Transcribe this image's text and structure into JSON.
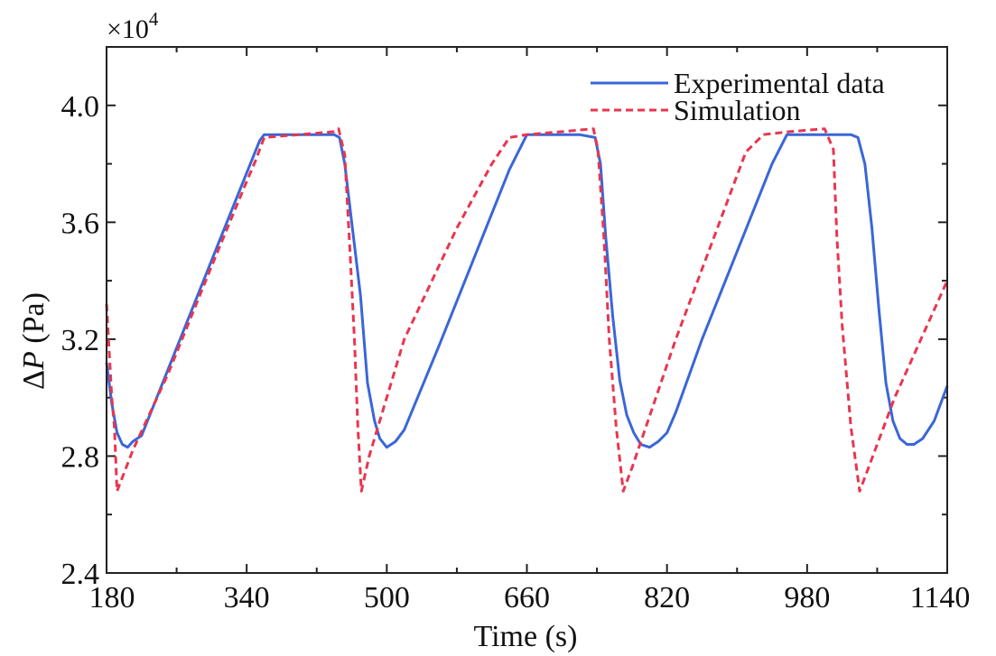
{
  "chart_data": {
    "type": "line",
    "multiplier": {
      "base": "×10",
      "exp": "4"
    },
    "xlabel": "Time (s)",
    "ylabel": {
      "pre": "Δ",
      "var": "P",
      "post": " (Pa)"
    },
    "xlim": [
      180,
      1140
    ],
    "ylim": [
      2.4,
      4.2
    ],
    "xticks": [
      180,
      340,
      500,
      660,
      820,
      980,
      1140
    ],
    "xtick_labels": [
      "180",
      "340",
      "500",
      "660",
      "820",
      "980",
      "1140"
    ],
    "yticks": [
      2.4,
      2.8,
      3.2,
      3.6,
      4.0
    ],
    "ytick_labels": [
      "2.4",
      "2.8",
      "3.2",
      "3.6",
      "4.0"
    ],
    "legend_position": "top-right",
    "grid": false,
    "series": [
      {
        "name": "Experimental data",
        "color": "#3a66d8",
        "dash": "solid",
        "x": [
          180,
          186,
          192,
          198,
          204,
          210,
          220,
          240,
          280,
          320,
          355,
          360,
          380,
          410,
          440,
          446,
          452,
          460,
          470,
          478,
          486,
          492,
          500,
          510,
          520,
          560,
          600,
          640,
          660,
          670,
          690,
          720,
          738,
          744,
          750,
          758,
          766,
          774,
          782,
          790,
          800,
          810,
          820,
          830,
          860,
          900,
          940,
          957,
          962,
          1000,
          1030,
          1038,
          1046,
          1054,
          1062,
          1070,
          1078,
          1086,
          1094,
          1102,
          1112,
          1125,
          1140
        ],
        "y": [
          3.12,
          2.98,
          2.88,
          2.84,
          2.83,
          2.85,
          2.87,
          3.02,
          3.32,
          3.62,
          3.88,
          3.9,
          3.9,
          3.9,
          3.9,
          3.89,
          3.8,
          3.6,
          3.35,
          3.05,
          2.92,
          2.86,
          2.83,
          2.85,
          2.89,
          3.18,
          3.48,
          3.78,
          3.9,
          3.9,
          3.9,
          3.9,
          3.89,
          3.8,
          3.55,
          3.28,
          3.06,
          2.94,
          2.88,
          2.84,
          2.83,
          2.85,
          2.88,
          2.95,
          3.2,
          3.5,
          3.8,
          3.9,
          3.9,
          3.9,
          3.9,
          3.89,
          3.8,
          3.58,
          3.3,
          3.05,
          2.92,
          2.86,
          2.84,
          2.84,
          2.86,
          2.92,
          3.04
        ]
      },
      {
        "name": "Simulation",
        "color": "#e8364e",
        "dash": "dashed",
        "x": [
          180,
          186,
          189,
          192,
          210,
          250,
          300,
          340,
          350,
          360,
          400,
          440,
          445,
          452,
          458,
          463,
          467,
          471,
          480,
          520,
          580,
          620,
          640,
          660,
          700,
          736,
          741,
          748,
          754,
          762,
          770,
          780,
          830,
          880,
          910,
          930,
          960,
          1000,
          1010,
          1014,
          1020,
          1030,
          1040,
          1045,
          1080,
          1110,
          1140
        ],
        "y": [
          3.32,
          3.0,
          2.9,
          2.68,
          2.82,
          3.08,
          3.45,
          3.74,
          3.81,
          3.89,
          3.9,
          3.91,
          3.92,
          3.83,
          3.5,
          3.2,
          2.9,
          2.68,
          2.8,
          3.2,
          3.58,
          3.8,
          3.89,
          3.9,
          3.91,
          3.92,
          3.85,
          3.55,
          3.2,
          2.9,
          2.68,
          2.76,
          3.2,
          3.6,
          3.84,
          3.9,
          3.91,
          3.92,
          3.85,
          3.55,
          3.25,
          2.9,
          2.68,
          2.72,
          3.0,
          3.2,
          3.4
        ]
      }
    ]
  }
}
